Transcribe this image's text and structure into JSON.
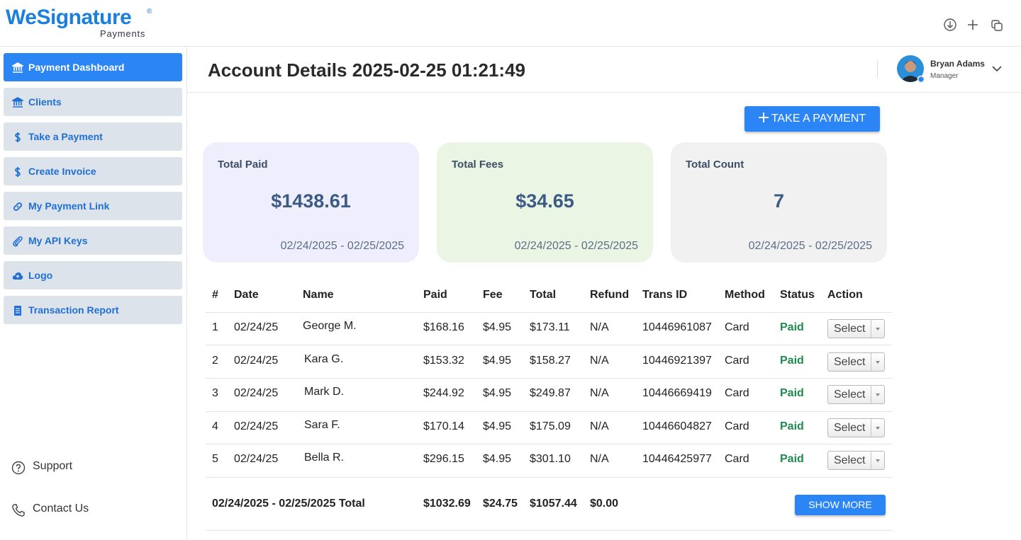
{
  "logo": {
    "brand": "WeSignature",
    "registered": "®",
    "tagline": "Payments"
  },
  "sidebar": {
    "items": [
      "Payment Dashboard",
      "Clients",
      "Take a Payment",
      "Create Invoice",
      "My Payment Link",
      "My API Keys",
      "Logo",
      "Transaction Report"
    ],
    "footer": [
      "Support",
      "Contact Us"
    ]
  },
  "header": {
    "title": "Account Details 2025-02-25 01:21:49",
    "user": {
      "name": "Bryan Adams",
      "role": "Manager"
    }
  },
  "actions": {
    "take_payment": "TAKE A PAYMENT"
  },
  "cards": [
    {
      "label": "Total Paid",
      "value": "$1438.61",
      "range": "02/24/2025 - 02/25/2025"
    },
    {
      "label": "Total Fees",
      "value": "$34.65",
      "range": "02/24/2025 - 02/25/2025"
    },
    {
      "label": "Total Count",
      "value": "7",
      "range": "02/24/2025 - 02/25/2025"
    }
  ],
  "table": {
    "columns": [
      "#",
      "Date",
      "Name",
      "Paid",
      "Fee",
      "Total",
      "Refund",
      "Trans ID",
      "Method",
      "Status",
      "Action"
    ],
    "rows": [
      [
        "1",
        "02/24/25",
        "George M.",
        "$168.16",
        "$4.95",
        "$173.11",
        "N/A",
        "10446961087",
        "Card",
        "Paid",
        "Select"
      ],
      [
        "2",
        "02/24/25",
        "Kara G.",
        "$153.32",
        "$4.95",
        "$158.27",
        "N/A",
        "10446921397",
        "Card",
        "Paid",
        "Select"
      ],
      [
        "3",
        "02/24/25",
        "Mark D.",
        "$244.92",
        "$4.95",
        "$249.87",
        "N/A",
        "10446669419",
        "Card",
        "Paid",
        "Select"
      ],
      [
        "4",
        "02/24/25",
        "Sara F.",
        "$170.14",
        "$4.95",
        "$175.09",
        "N/A",
        "10446604827",
        "Card",
        "Paid",
        "Select"
      ],
      [
        "5",
        "02/24/25",
        "Bella R.",
        "$296.15",
        "$4.95",
        "$301.10",
        "N/A",
        "10446425977",
        "Card",
        "Paid",
        "Select"
      ]
    ],
    "total": {
      "label": "02/24/2025 - 02/25/2025 Total",
      "paid": "$1032.69",
      "fee": "$24.75",
      "total": "$1057.44",
      "refund": "$0.00"
    },
    "show_more": "SHOW MORE"
  }
}
